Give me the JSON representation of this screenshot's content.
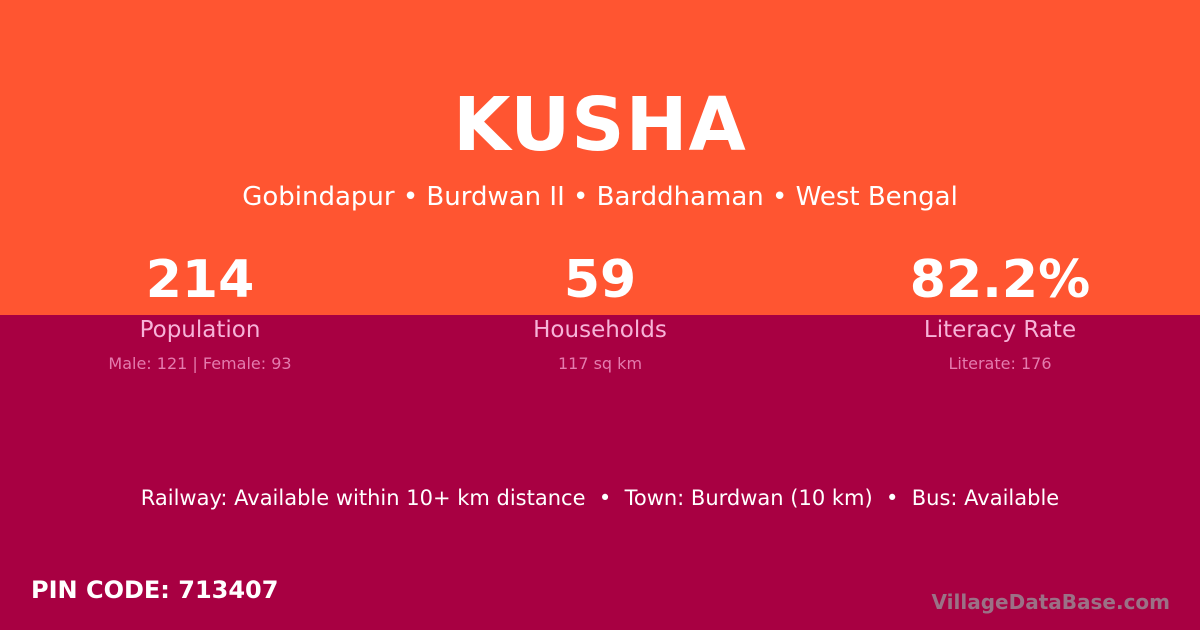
{
  "title": "KUSHA",
  "location": "Gobindapur • Burdwan II • Barddhaman • West Bengal",
  "stats": [
    {
      "value": "214",
      "label": "Population",
      "sub": "Male: 121 | Female: 93"
    },
    {
      "value": "59",
      "label": "Households",
      "sub": "117 sq km"
    },
    {
      "value": "82.2%",
      "label": "Literacy Rate",
      "sub": "Literate: 176"
    }
  ],
  "info": "Railway: Available within 10+ km distance  •  Town: Burdwan (10 km)  •  Bus: Available",
  "pin": "PIN CODE: 713407",
  "brand": "VillageDataBase.com",
  "colors": {
    "top": "#FF5531",
    "bottom": "#A80042"
  }
}
